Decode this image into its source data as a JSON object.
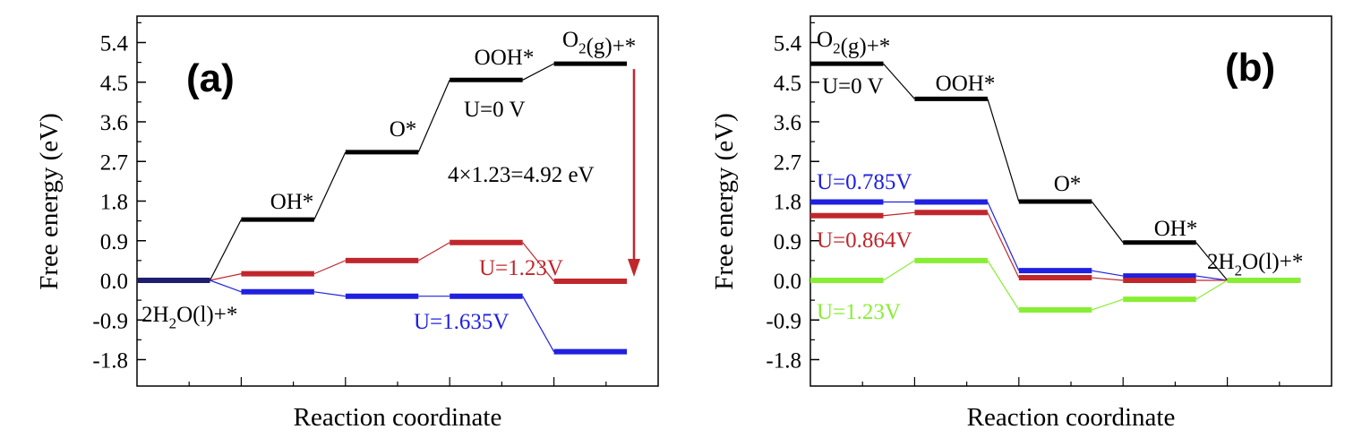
{
  "chart_data": [
    {
      "type": "line",
      "panel_label": "(a)",
      "xlabel": "Reaction coordinate",
      "ylabel": "Free energy (eV)",
      "ylim": [
        -2.4,
        6.0
      ],
      "yticks": [
        -1.8,
        -0.9,
        0.0,
        0.9,
        1.8,
        2.7,
        3.6,
        4.5,
        5.4
      ],
      "ytick_labels": [
        "-1.8",
        "-0.9",
        "0.0",
        "0.9",
        "1.8",
        "2.7",
        "3.6",
        "4.5",
        "5.4"
      ],
      "steps": 5,
      "series": [
        {
          "name": "U=0 V",
          "color": "#000000",
          "values": [
            0.0,
            1.38,
            2.91,
            4.55,
            4.92
          ]
        },
        {
          "name": "U=1.23V",
          "color": "#c0272d",
          "values": [
            0.0,
            0.15,
            0.45,
            0.86,
            -0.02
          ]
        },
        {
          "name": "U=1.635V",
          "color": "#2020e0",
          "values": [
            0.0,
            -0.26,
            -0.36,
            -0.36,
            -1.62
          ]
        }
      ],
      "initial_color": "#1e1e6e",
      "state_labels": [
        "2H2O(l)+*",
        "OH*",
        "O*",
        "OOH*",
        "O2(g)+*"
      ],
      "annotation": "4×1.23=4.92 eV",
      "arrow": {
        "from": 4.92,
        "to": 0.0,
        "color": "#c0272d"
      }
    },
    {
      "type": "line",
      "panel_label": "(b)",
      "xlabel": "Reaction coordinate",
      "ylabel": "Free energy (eV)",
      "ylim": [
        -2.4,
        6.0
      ],
      "yticks": [
        -1.8,
        -0.9,
        0.0,
        0.9,
        1.8,
        2.7,
        3.6,
        4.5,
        5.4
      ],
      "ytick_labels": [
        "-1.8",
        "-0.9",
        "0.0",
        "0.9",
        "1.8",
        "2.7",
        "3.6",
        "4.5",
        "5.4"
      ],
      "steps": 5,
      "series": [
        {
          "name": "U=0 V",
          "color": "#000000",
          "values": [
            4.92,
            4.12,
            1.79,
            0.86,
            0.0
          ]
        },
        {
          "name": "U=0.785V",
          "color": "#2020e0",
          "values": [
            1.78,
            1.78,
            0.22,
            0.1,
            0.0
          ]
        },
        {
          "name": "U=0.864V",
          "color": "#c0272d",
          "values": [
            1.47,
            1.54,
            0.06,
            0.0,
            0.0
          ]
        },
        {
          "name": "U=1.23V",
          "color": "#88ee33",
          "values": [
            0.0,
            0.45,
            -0.67,
            -0.43,
            0.0
          ]
        }
      ],
      "state_labels": [
        "O2(g)+*",
        "OOH*",
        "O*",
        "OH*",
        "2H2O(l)+*"
      ]
    }
  ]
}
